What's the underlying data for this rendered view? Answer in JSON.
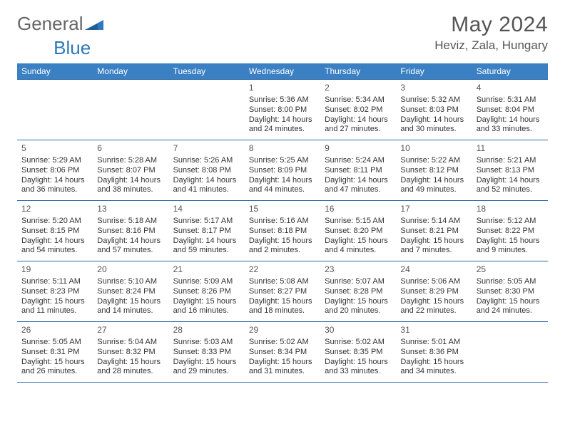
{
  "brand": {
    "word1": "General",
    "word2": "Blue",
    "color1": "#777777",
    "color2": "#2e78bd"
  },
  "title": "May 2024",
  "location": "Heviz, Zala, Hungary",
  "header_bg": "#3a80c3",
  "rule_color": "#2e6aa6",
  "dow": [
    "Sunday",
    "Monday",
    "Tuesday",
    "Wednesday",
    "Thursday",
    "Friday",
    "Saturday"
  ],
  "weeks": [
    [
      null,
      null,
      null,
      {
        "n": "1",
        "sr": "5:36 AM",
        "ss": "8:00 PM",
        "dh": "14",
        "dm": "24"
      },
      {
        "n": "2",
        "sr": "5:34 AM",
        "ss": "8:02 PM",
        "dh": "14",
        "dm": "27"
      },
      {
        "n": "3",
        "sr": "5:32 AM",
        "ss": "8:03 PM",
        "dh": "14",
        "dm": "30"
      },
      {
        "n": "4",
        "sr": "5:31 AM",
        "ss": "8:04 PM",
        "dh": "14",
        "dm": "33"
      }
    ],
    [
      {
        "n": "5",
        "sr": "5:29 AM",
        "ss": "8:06 PM",
        "dh": "14",
        "dm": "36"
      },
      {
        "n": "6",
        "sr": "5:28 AM",
        "ss": "8:07 PM",
        "dh": "14",
        "dm": "38"
      },
      {
        "n": "7",
        "sr": "5:26 AM",
        "ss": "8:08 PM",
        "dh": "14",
        "dm": "41"
      },
      {
        "n": "8",
        "sr": "5:25 AM",
        "ss": "8:09 PM",
        "dh": "14",
        "dm": "44"
      },
      {
        "n": "9",
        "sr": "5:24 AM",
        "ss": "8:11 PM",
        "dh": "14",
        "dm": "47"
      },
      {
        "n": "10",
        "sr": "5:22 AM",
        "ss": "8:12 PM",
        "dh": "14",
        "dm": "49"
      },
      {
        "n": "11",
        "sr": "5:21 AM",
        "ss": "8:13 PM",
        "dh": "14",
        "dm": "52"
      }
    ],
    [
      {
        "n": "12",
        "sr": "5:20 AM",
        "ss": "8:15 PM",
        "dh": "14",
        "dm": "54"
      },
      {
        "n": "13",
        "sr": "5:18 AM",
        "ss": "8:16 PM",
        "dh": "14",
        "dm": "57"
      },
      {
        "n": "14",
        "sr": "5:17 AM",
        "ss": "8:17 PM",
        "dh": "14",
        "dm": "59"
      },
      {
        "n": "15",
        "sr": "5:16 AM",
        "ss": "8:18 PM",
        "dh": "15",
        "dm": "2"
      },
      {
        "n": "16",
        "sr": "5:15 AM",
        "ss": "8:20 PM",
        "dh": "15",
        "dm": "4"
      },
      {
        "n": "17",
        "sr": "5:14 AM",
        "ss": "8:21 PM",
        "dh": "15",
        "dm": "7"
      },
      {
        "n": "18",
        "sr": "5:12 AM",
        "ss": "8:22 PM",
        "dh": "15",
        "dm": "9"
      }
    ],
    [
      {
        "n": "19",
        "sr": "5:11 AM",
        "ss": "8:23 PM",
        "dh": "15",
        "dm": "11"
      },
      {
        "n": "20",
        "sr": "5:10 AM",
        "ss": "8:24 PM",
        "dh": "15",
        "dm": "14"
      },
      {
        "n": "21",
        "sr": "5:09 AM",
        "ss": "8:26 PM",
        "dh": "15",
        "dm": "16"
      },
      {
        "n": "22",
        "sr": "5:08 AM",
        "ss": "8:27 PM",
        "dh": "15",
        "dm": "18"
      },
      {
        "n": "23",
        "sr": "5:07 AM",
        "ss": "8:28 PM",
        "dh": "15",
        "dm": "20"
      },
      {
        "n": "24",
        "sr": "5:06 AM",
        "ss": "8:29 PM",
        "dh": "15",
        "dm": "22"
      },
      {
        "n": "25",
        "sr": "5:05 AM",
        "ss": "8:30 PM",
        "dh": "15",
        "dm": "24"
      }
    ],
    [
      {
        "n": "26",
        "sr": "5:05 AM",
        "ss": "8:31 PM",
        "dh": "15",
        "dm": "26"
      },
      {
        "n": "27",
        "sr": "5:04 AM",
        "ss": "8:32 PM",
        "dh": "15",
        "dm": "28"
      },
      {
        "n": "28",
        "sr": "5:03 AM",
        "ss": "8:33 PM",
        "dh": "15",
        "dm": "29"
      },
      {
        "n": "29",
        "sr": "5:02 AM",
        "ss": "8:34 PM",
        "dh": "15",
        "dm": "31"
      },
      {
        "n": "30",
        "sr": "5:02 AM",
        "ss": "8:35 PM",
        "dh": "15",
        "dm": "33"
      },
      {
        "n": "31",
        "sr": "5:01 AM",
        "ss": "8:36 PM",
        "dh": "15",
        "dm": "34"
      },
      null
    ]
  ],
  "labels": {
    "sunrise": "Sunrise:",
    "sunset": "Sunset:",
    "daylight": "Daylight:",
    "hours": "hours",
    "and": "and",
    "minutes": "minutes."
  }
}
